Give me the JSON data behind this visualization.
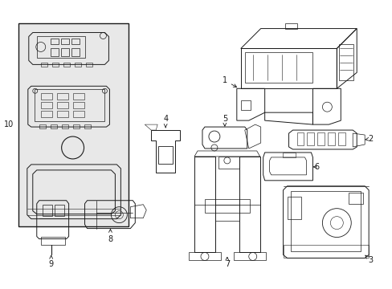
{
  "background_color": "#ffffff",
  "line_color": "#1a1a1a",
  "box10_fill": "#e8e8e8",
  "figure_width": 4.89,
  "figure_height": 3.6,
  "dpi": 100,
  "label_fontsize": 7.0
}
